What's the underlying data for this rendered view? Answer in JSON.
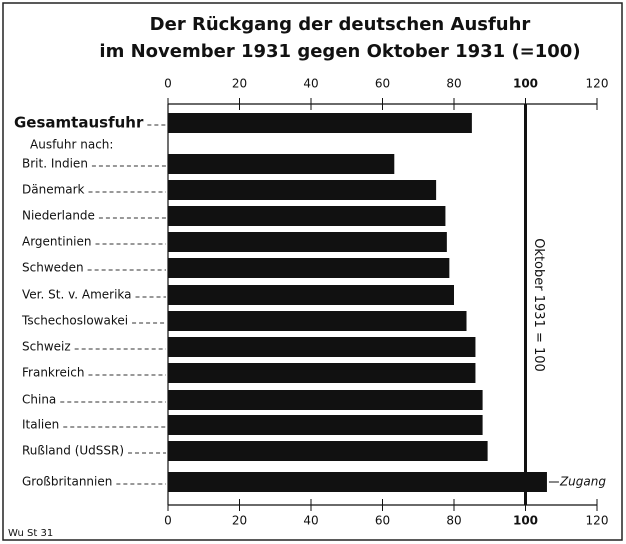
{
  "chart_data": {
    "type": "bar",
    "orientation": "horizontal",
    "title_lines": [
      "Der Rückgang der deutschen Ausfuhr",
      "im November 1931 gegen Oktober 1931 (=100)"
    ],
    "subheading": "Ausfuhr nach:",
    "categories": [
      "Gesamtausfuhr",
      "Brit. Indien",
      "Dänemark",
      "Niederlande",
      "Argentinien",
      "Schweden",
      "Ver. St. v. Amerika",
      "Tschechoslowakei",
      "Schweiz",
      "Frankreich",
      "China",
      "Italien",
      "Rußland (UdSSR)",
      "Großbritannien"
    ],
    "values": [
      85,
      63.3,
      75,
      77.6,
      78,
      78.7,
      80,
      83.5,
      86,
      86,
      88,
      88,
      89.4,
      106
    ],
    "color": "#111111",
    "xlim": [
      0,
      120
    ],
    "xticks": [
      0,
      20,
      40,
      60,
      80,
      100,
      120
    ],
    "reference": {
      "value": 100,
      "label": "Oktober 1931 = 100"
    },
    "annotation": "Zugang",
    "source": "Wu St 31"
  }
}
